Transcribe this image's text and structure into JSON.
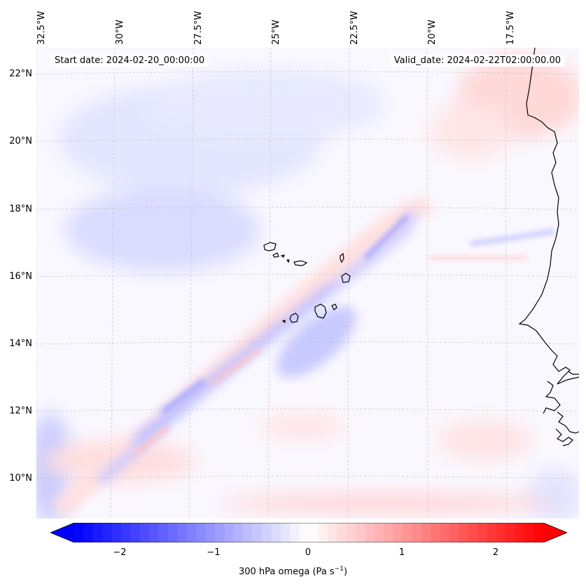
{
  "header": {
    "start_date": "Start date: 2024-02-20_00:00:00",
    "valid_date": "Valid_date: 2024-02-22T02:00:00.00"
  },
  "longitude_labels": [
    "32.5°W",
    "30°W",
    "27.5°W",
    "25°W",
    "22.5°W",
    "20°W",
    "17.5°W"
  ],
  "latitude_labels": [
    "22°N",
    "20°N",
    "18°N",
    "16°N",
    "14°N",
    "12°N",
    "10°N"
  ],
  "colorbar": {
    "label": "300 hPa omega (Pa s",
    "label_sup": "−1",
    "label_end": ")",
    "ticks": [
      "−2",
      "−1",
      "0",
      "1",
      "2"
    ],
    "range": [
      -2.75,
      2.75
    ],
    "colormap": "bwr",
    "neg_color": "#0000ff",
    "zero_color": "#ffffff",
    "pos_color": "#ff0000"
  },
  "map": {
    "coastline_color": "#000000",
    "grid_color": "#b0b0b0",
    "features": [
      "cape-verde-islands",
      "west-africa-coastline"
    ]
  }
}
